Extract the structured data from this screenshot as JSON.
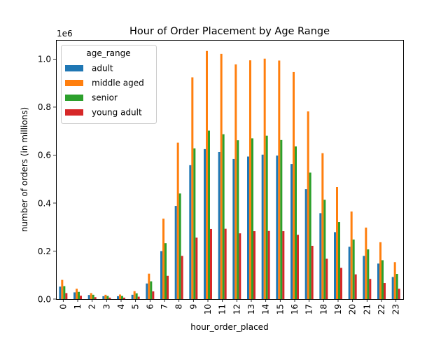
{
  "chart_data": {
    "type": "bar",
    "title": "Hour of Order Placement by Age Range",
    "xlabel": "hour_order_placed",
    "ylabel": "number of orders (in millions)",
    "y_offset_label": "1e6",
    "ylim": [
      0,
      1.08
    ],
    "yticks": [
      "0.0",
      "0.2",
      "0.4",
      "0.6",
      "0.8",
      "1.0"
    ],
    "ytick_values": [
      0,
      0.2,
      0.4,
      0.6,
      0.8,
      1.0
    ],
    "grid": false,
    "legend": {
      "title": "age_range",
      "placement": "top-left"
    },
    "categories": [
      "0",
      "1",
      "2",
      "3",
      "4",
      "5",
      "6",
      "7",
      "8",
      "9",
      "10",
      "11",
      "12",
      "13",
      "14",
      "15",
      "16",
      "17",
      "18",
      "19",
      "20",
      "21",
      "22",
      "23"
    ],
    "series": [
      {
        "name": "adult",
        "color": "#1f77b4",
        "values": [
          0.052,
          0.028,
          0.017,
          0.012,
          0.012,
          0.018,
          0.065,
          0.2,
          0.388,
          0.558,
          0.625,
          0.613,
          0.584,
          0.594,
          0.602,
          0.598,
          0.563,
          0.458,
          0.358,
          0.279,
          0.218,
          0.18,
          0.148,
          0.092
        ]
      },
      {
        "name": "middle aged",
        "color": "#ff7f0e",
        "values": [
          0.08,
          0.043,
          0.025,
          0.018,
          0.019,
          0.033,
          0.106,
          0.335,
          0.652,
          0.924,
          1.034,
          1.022,
          0.978,
          0.995,
          1.002,
          0.994,
          0.946,
          0.782,
          0.608,
          0.467,
          0.365,
          0.298,
          0.237,
          0.154
        ]
      },
      {
        "name": "senior",
        "color": "#2ca02c",
        "values": [
          0.054,
          0.03,
          0.018,
          0.013,
          0.013,
          0.024,
          0.074,
          0.233,
          0.44,
          0.628,
          0.702,
          0.687,
          0.662,
          0.67,
          0.681,
          0.663,
          0.636,
          0.527,
          0.414,
          0.321,
          0.248,
          0.207,
          0.162,
          0.105
        ]
      },
      {
        "name": "young adult",
        "color": "#d62728",
        "values": [
          0.025,
          0.014,
          0.008,
          0.006,
          0.006,
          0.01,
          0.032,
          0.097,
          0.18,
          0.256,
          0.292,
          0.293,
          0.274,
          0.283,
          0.284,
          0.283,
          0.268,
          0.222,
          0.168,
          0.13,
          0.103,
          0.084,
          0.067,
          0.043
        ]
      }
    ]
  }
}
